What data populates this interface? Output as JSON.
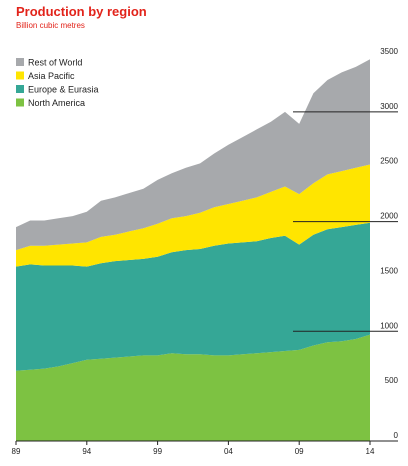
{
  "chart_data": {
    "type": "area",
    "stacked": true,
    "title": "Production by region",
    "subtitle": "Billion cubic metres",
    "x": [
      1989,
      1990,
      1991,
      1992,
      1993,
      1994,
      1995,
      1996,
      1997,
      1998,
      1999,
      2000,
      2001,
      2002,
      2003,
      2004,
      2005,
      2006,
      2007,
      2008,
      2009,
      2010,
      2011,
      2012,
      2013,
      2014
    ],
    "x_tick_labels": [
      {
        "x": 1989,
        "label": "89"
      },
      {
        "x": 1994,
        "label": "94"
      },
      {
        "x": 1999,
        "label": "99"
      },
      {
        "x": 2004,
        "label": "04"
      },
      {
        "x": 2009,
        "label": "09"
      },
      {
        "x": 2014,
        "label": "14"
      }
    ],
    "y_axis": {
      "side": "right",
      "ylim": [
        0,
        3500
      ],
      "ticks": [
        0,
        500,
        1000,
        1500,
        2000,
        2500,
        3000,
        3500
      ],
      "tick_labels": [
        "0",
        "500",
        "1000",
        "1500",
        "2000",
        "2500",
        "3000",
        "3500"
      ]
    },
    "series": [
      {
        "name": "North America",
        "color": "#7dc242",
        "values": [
          640,
          650,
          660,
          680,
          710,
          740,
          750,
          760,
          770,
          780,
          780,
          800,
          790,
          790,
          780,
          780,
          790,
          800,
          810,
          820,
          830,
          870,
          900,
          910,
          930,
          970
        ]
      },
      {
        "name": "Europe & Eurasia",
        "color": "#35a796",
        "values": [
          950,
          960,
          940,
          920,
          890,
          850,
          870,
          880,
          880,
          880,
          900,
          920,
          950,
          960,
          1000,
          1020,
          1020,
          1020,
          1040,
          1050,
          960,
          1010,
          1030,
          1040,
          1040,
          1020
        ]
      },
      {
        "name": "Asia Pacific",
        "color": "#ffe500",
        "values": [
          150,
          170,
          180,
          190,
          200,
          220,
          240,
          240,
          260,
          280,
          300,
          310,
          310,
          330,
          350,
          360,
          380,
          400,
          420,
          450,
          460,
          470,
          500,
          510,
          520,
          530
        ]
      },
      {
        "name": "Rest of World",
        "color": "#a7a9ac",
        "values": [
          210,
          230,
          230,
          240,
          250,
          280,
          330,
          340,
          350,
          360,
          400,
          410,
          440,
          450,
          490,
          540,
          580,
          620,
          640,
          680,
          640,
          820,
          860,
          900,
          920,
          960
        ]
      }
    ],
    "legend": {
      "position": "top-left",
      "order": [
        "Rest of World",
        "Asia Pacific",
        "Europe & Eurasia",
        "North America"
      ]
    },
    "grid": {
      "horizontal": true,
      "values": [
        1000,
        2000,
        3000
      ]
    }
  }
}
